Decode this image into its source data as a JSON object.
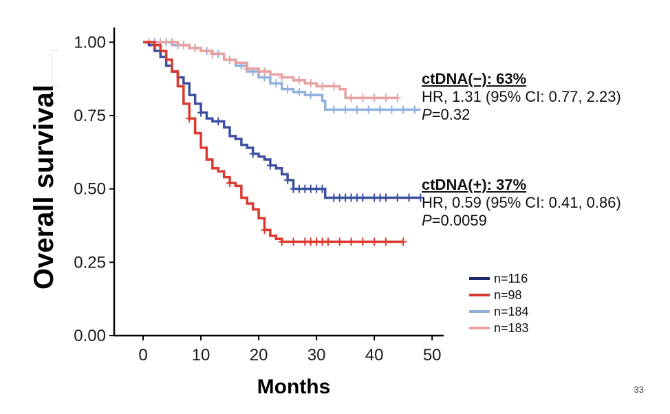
{
  "chart_data": {
    "type": "line",
    "xlabel": "Months",
    "ylabel": "Overall survival",
    "xlim": [
      -5,
      52
    ],
    "ylim": [
      0,
      1.05
    ],
    "xticks": [
      0,
      10,
      20,
      30,
      40,
      50
    ],
    "yticks": [
      "0.00",
      "0.25",
      "0.50",
      "0.75",
      "1.00"
    ],
    "series": [
      {
        "name": "n=116",
        "color": "#3c4fa0",
        "legend_color": "#1a2a6c",
        "points": [
          [
            0,
            1.0
          ],
          [
            1,
            0.99
          ],
          [
            2,
            0.97
          ],
          [
            3,
            0.95
          ],
          [
            4,
            0.92
          ],
          [
            5,
            0.9
          ],
          [
            6,
            0.88
          ],
          [
            7,
            0.86
          ],
          [
            8,
            0.82
          ],
          [
            9,
            0.79
          ],
          [
            10,
            0.76
          ],
          [
            11,
            0.74
          ],
          [
            12,
            0.73
          ],
          [
            14,
            0.71
          ],
          [
            15,
            0.68
          ],
          [
            16,
            0.67
          ],
          [
            17,
            0.65
          ],
          [
            18,
            0.64
          ],
          [
            19,
            0.62
          ],
          [
            20,
            0.61
          ],
          [
            21,
            0.6
          ],
          [
            22,
            0.58
          ],
          [
            23,
            0.57
          ],
          [
            24,
            0.55
          ],
          [
            25,
            0.53
          ],
          [
            26,
            0.5
          ],
          [
            28,
            0.5
          ],
          [
            31,
            0.5
          ],
          [
            31.5,
            0.47
          ],
          [
            48,
            0.47
          ]
        ],
        "censor_x": [
          10,
          13,
          19,
          22,
          25,
          26,
          27,
          28,
          29,
          30,
          31,
          33,
          34,
          35,
          36,
          37,
          38,
          40,
          41,
          42,
          44,
          46,
          48
        ]
      },
      {
        "name": "n=98",
        "color": "#d9392e",
        "legend_color": "#d9392e",
        "points": [
          [
            0,
            1.0
          ],
          [
            1,
            1.0
          ],
          [
            2,
            0.99
          ],
          [
            3,
            0.97
          ],
          [
            4,
            0.94
          ],
          [
            5,
            0.9
          ],
          [
            6,
            0.85
          ],
          [
            7,
            0.79
          ],
          [
            8,
            0.74
          ],
          [
            9,
            0.69
          ],
          [
            10,
            0.64
          ],
          [
            11,
            0.6
          ],
          [
            12,
            0.57
          ],
          [
            13,
            0.56
          ],
          [
            14,
            0.54
          ],
          [
            15,
            0.52
          ],
          [
            16,
            0.51
          ],
          [
            17,
            0.47
          ],
          [
            18,
            0.45
          ],
          [
            19,
            0.43
          ],
          [
            20,
            0.4
          ],
          [
            21,
            0.36
          ],
          [
            22,
            0.34
          ],
          [
            23,
            0.33
          ],
          [
            24,
            0.32
          ],
          [
            45,
            0.32
          ]
        ],
        "censor_x": [
          2,
          8,
          15,
          21,
          24,
          26,
          28,
          29,
          30,
          31,
          32,
          34,
          36,
          38,
          40,
          42,
          45
        ]
      },
      {
        "name": "n=184",
        "color": "#8fb1de",
        "legend_color": "#8fb1de",
        "points": [
          [
            0,
            1.0
          ],
          [
            5,
            0.99
          ],
          [
            8,
            0.98
          ],
          [
            10,
            0.97
          ],
          [
            12,
            0.96
          ],
          [
            14,
            0.94
          ],
          [
            16,
            0.92
          ],
          [
            18,
            0.9
          ],
          [
            20,
            0.88
          ],
          [
            22,
            0.86
          ],
          [
            24,
            0.84
          ],
          [
            26,
            0.83
          ],
          [
            28,
            0.82
          ],
          [
            30,
            0.82
          ],
          [
            31,
            0.8
          ],
          [
            31.5,
            0.77
          ],
          [
            48,
            0.77
          ]
        ],
        "censor_x": [
          2,
          4,
          6,
          9,
          11,
          13,
          15,
          17,
          19,
          21,
          23,
          25,
          27,
          29,
          33,
          35,
          37,
          39,
          41,
          43,
          45,
          47
        ]
      },
      {
        "name": "n=183",
        "color": "#e6a1a0",
        "legend_color": "#e6a1a0",
        "points": [
          [
            0,
            1.0
          ],
          [
            4,
            1.0
          ],
          [
            6,
            0.99
          ],
          [
            8,
            0.98
          ],
          [
            10,
            0.97
          ],
          [
            12,
            0.96
          ],
          [
            14,
            0.94
          ],
          [
            16,
            0.93
          ],
          [
            18,
            0.91
          ],
          [
            20,
            0.9
          ],
          [
            22,
            0.89
          ],
          [
            24,
            0.88
          ],
          [
            26,
            0.87
          ],
          [
            28,
            0.86
          ],
          [
            30,
            0.85
          ],
          [
            32,
            0.85
          ],
          [
            34,
            0.84
          ],
          [
            35,
            0.81
          ],
          [
            44,
            0.81
          ]
        ],
        "censor_x": [
          1,
          3,
          5,
          7,
          9,
          12,
          15,
          18,
          21,
          24,
          27,
          29,
          31,
          33,
          36,
          38,
          40,
          42,
          44
        ]
      }
    ]
  },
  "annotations": {
    "negative": {
      "head": "ctDNA(−): 63%",
      "hr": "HR, 1.31 (95% CI: 0.77, 2.23)",
      "p_label": "P",
      "p_value": "=0.32"
    },
    "positive": {
      "head": "ctDNA(+): 37%",
      "hr": "HR, 0.59 (95% CI: 0.41, 0.86)",
      "p_label": "P",
      "p_value": "=0.0059"
    }
  },
  "legend": [
    {
      "label": "n=116",
      "color": "#1a2a6c"
    },
    {
      "label": "n=98",
      "color": "#d9392e"
    },
    {
      "label": "n=184",
      "color": "#8fb1de"
    },
    {
      "label": "n=183",
      "color": "#e6a1a0"
    }
  ],
  "page_number": "33"
}
